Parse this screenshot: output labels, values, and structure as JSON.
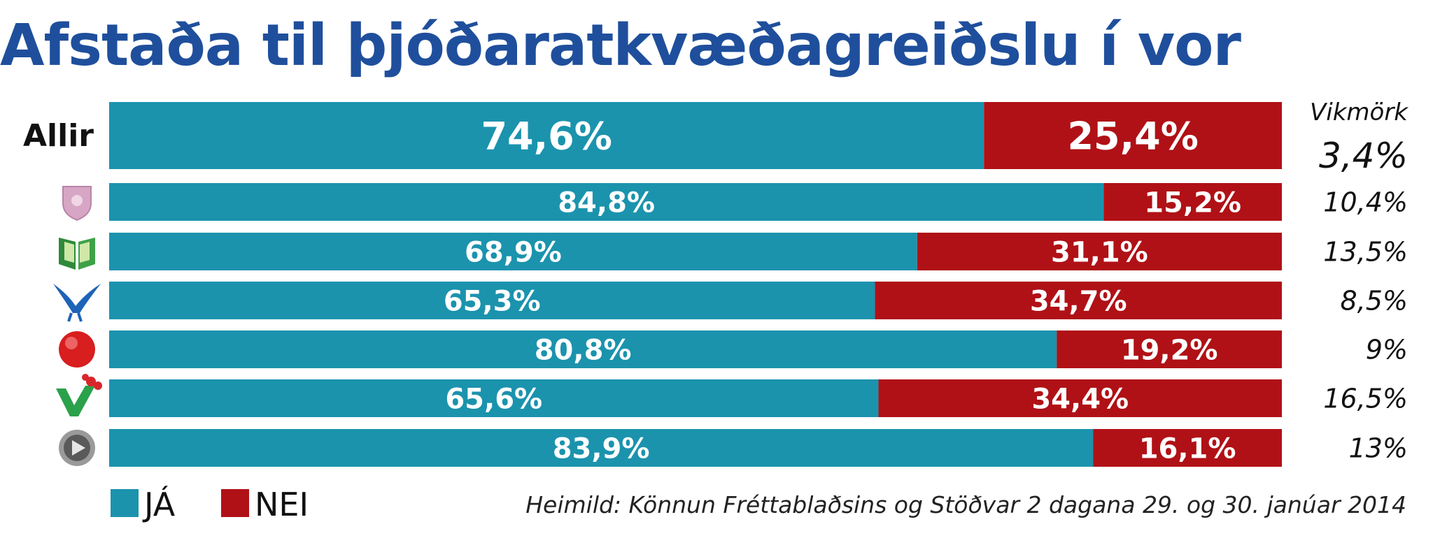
{
  "chart_data": {
    "type": "bar",
    "orientation": "horizontal",
    "stacked": true,
    "title": "Afstaða til þjóðaratkvæðagreiðslu í vor",
    "categories": [
      "Allir",
      "",
      "",
      "",
      "",
      "",
      ""
    ],
    "row_icons": [
      "none",
      "party-shield-logo-icon",
      "party-open-book-logo-icon",
      "party-blue-bird-logo-icon",
      "party-red-rose-logo-icon",
      "party-green-v-flower-logo-icon",
      "party-grey-play-button-logo-icon"
    ],
    "series": [
      {
        "name": "JÁ",
        "color": "#1b93ad",
        "values": [
          74.6,
          84.8,
          68.9,
          65.3,
          80.8,
          65.6,
          83.9
        ],
        "labels": [
          "74,6%",
          "84,8%",
          "68,9%",
          "65,3%",
          "80,8%",
          "65,6%",
          "83,9%"
        ]
      },
      {
        "name": "NEI",
        "color": "#b01116",
        "values": [
          25.4,
          15.2,
          31.1,
          34.7,
          19.2,
          34.4,
          16.1
        ],
        "labels": [
          "25,4%",
          "15,2%",
          "31,1%",
          "34,7%",
          "19,2%",
          "34,4%",
          "16,1%"
        ]
      }
    ],
    "xlim": [
      0,
      100
    ],
    "margin_of_error": {
      "header": "Vikmörk",
      "values": [
        "3,4%",
        "10,4%",
        "13,5%",
        "8,5%",
        "9%",
        "16,5%",
        "13%"
      ]
    },
    "legend": {
      "position": "bottom-left",
      "entries": [
        "JÁ",
        "NEI"
      ]
    },
    "source": "Heimild: Könnun Fréttablaðsins og Stöðvar 2 dagana 29. og 30. janúar 2014",
    "grid": false
  }
}
